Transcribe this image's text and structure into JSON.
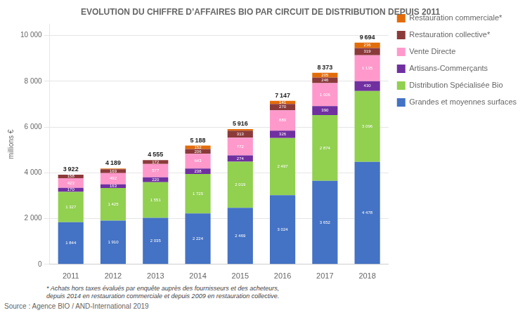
{
  "chart_data": {
    "type": "bar",
    "stacked": true,
    "title": "EVOLUTION DU CHIFFRE D’AFFAIRES BIO PAR CIRCUIT DE DISTRIBUTION DEPUIS 2011",
    "ylabel": "millions €",
    "categories": [
      "2011",
      "2012",
      "2013",
      "2014",
      "2015",
      "2016",
      "2017",
      "2018"
    ],
    "series": [
      {
        "name": "Grandes et moyennes surfaces",
        "color": "#4472C4",
        "values": [
          1844,
          1910,
          2035,
          2224,
          2469,
          3024,
          3652,
          4478
        ],
        "value_labels": [
          "1 844",
          "1 910",
          "2 035",
          "2 224",
          "2 469",
          "3 024",
          "3 652",
          "4 478"
        ]
      },
      {
        "name": "Distribution Spécialisée Bio",
        "color": "#92D050",
        "values": [
          1327,
          1425,
          1551,
          1725,
          2019,
          2497,
          2874,
          3096
        ],
        "value_labels": [
          "1 327",
          "1 425",
          "1 551",
          "1 725",
          "2 019",
          "2 497",
          "2 874",
          "3 096"
        ]
      },
      {
        "name": "Artisans-Commerçants",
        "color": "#7030A0",
        "values": [
          170,
          163,
          220,
          238,
          274,
          326,
          390,
          430
        ],
        "value_labels": [
          "170",
          "163",
          "220",
          "238",
          "274",
          "326",
          "390",
          "430"
        ]
      },
      {
        "name": "Vente Directe",
        "color": "#FF99CC",
        "values": [
          423,
          492,
          577,
          643,
          772,
          889,
          1006,
          1135
        ],
        "value_labels": [
          "423",
          "492",
          "577",
          "643",
          "772",
          "889",
          "1 006",
          "1 135"
        ]
      },
      {
        "name": "Restauration collective*",
        "color": "#8B3A3A",
        "values": [
          158,
          169,
          172,
          206,
          313,
          270,
          246,
          319
        ],
        "value_labels": [
          "158",
          "169",
          "172",
          "206",
          "313",
          "270",
          "246",
          "319"
        ]
      },
      {
        "name": "Restauration commerciale*",
        "color": "#E36C09",
        "values": [
          0,
          30,
          0,
          152,
          69,
          141,
          205,
          236
        ],
        "value_labels": [
          null,
          null,
          null,
          "152",
          null,
          "141",
          "205",
          "236"
        ]
      }
    ],
    "totals": [
      3922,
      4189,
      4555,
      5188,
      5916,
      7147,
      8373,
      9694
    ],
    "total_labels": [
      "3 922",
      "4 189",
      "4 555",
      "5 188",
      "5 916",
      "7 147",
      "8 373",
      "9 694"
    ],
    "data_labels": true,
    "ylim": [
      0,
      10500
    ],
    "yticks": [
      0,
      {
        "value": 2000,
        "label": "2 000"
      },
      {
        "value": 4000,
        "label": "4 000"
      },
      {
        "value": 6000,
        "label": "6 000"
      },
      {
        "value": 8000,
        "label": "8 000"
      },
      {
        "value": 10000,
        "label": "10 000"
      }
    ],
    "grid": true,
    "legend": "right",
    "footnote": "* Achats hors taxes évalués par enquête auprès des fournisseurs et des acheteurs,\ndepuis 2014 en restauration commerciale  et  depuis 2009 en restauration collective.",
    "source": "Source : Agence BIO / AND-International 2019"
  }
}
